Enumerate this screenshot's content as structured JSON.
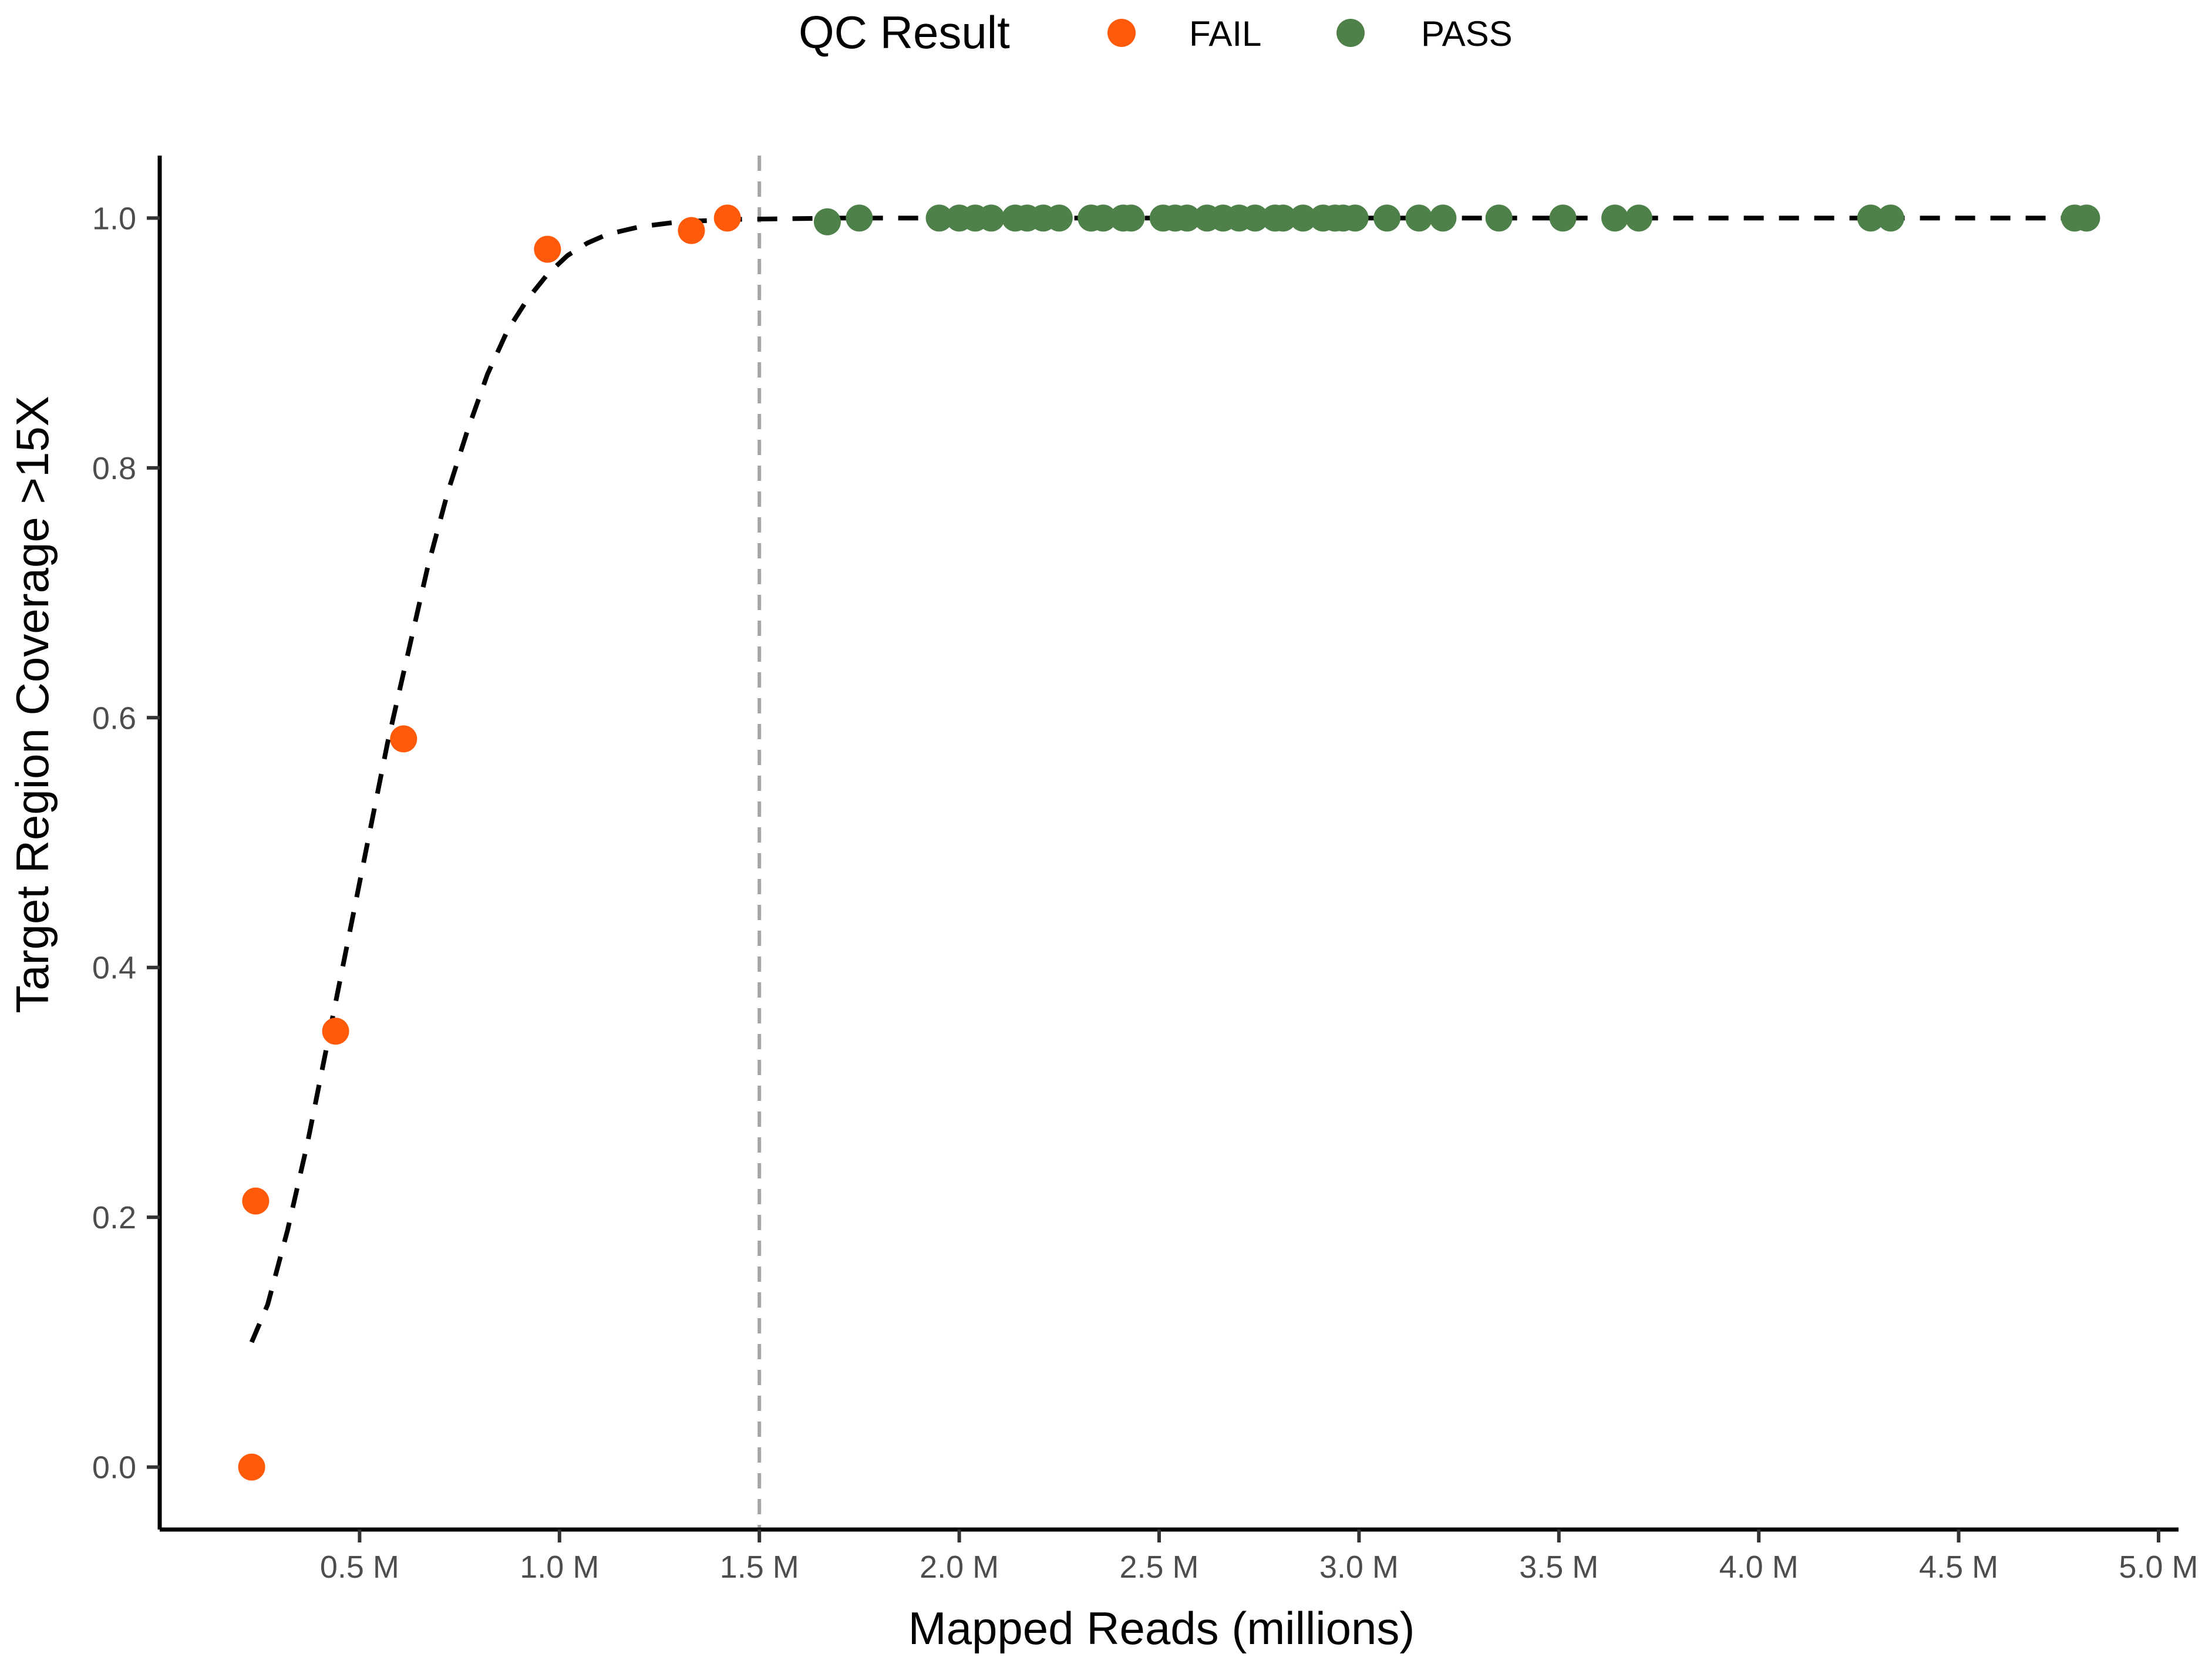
{
  "legend": {
    "title": "QC Result",
    "entries": [
      {
        "label": "FAIL",
        "color": "#FF5A0A"
      },
      {
        "label": "PASS",
        "color": "#4E8049"
      }
    ]
  },
  "chart_data": {
    "type": "scatter",
    "title": "",
    "xlabel": "Mapped Reads (millions)",
    "ylabel": "Target Region Coverage >15X",
    "xlim": [
      0.0,
      5.05
    ],
    "ylim": [
      -0.05,
      1.05
    ],
    "x_ticks": [
      {
        "value": 0.5,
        "label": "0.5 M"
      },
      {
        "value": 1.0,
        "label": "1.0 M"
      },
      {
        "value": 1.5,
        "label": "1.5 M"
      },
      {
        "value": 2.0,
        "label": "2.0 M"
      },
      {
        "value": 2.5,
        "label": "2.5 M"
      },
      {
        "value": 3.0,
        "label": "3.0 M"
      },
      {
        "value": 3.5,
        "label": "3.5 M"
      },
      {
        "value": 4.0,
        "label": "4.0 M"
      },
      {
        "value": 4.5,
        "label": "4.5 M"
      },
      {
        "value": 5.0,
        "label": "5.0 M"
      }
    ],
    "y_ticks": [
      {
        "value": 0.0,
        "label": "0.0"
      },
      {
        "value": 0.2,
        "label": "0.2"
      },
      {
        "value": 0.4,
        "label": "0.4"
      },
      {
        "value": 0.6,
        "label": "0.6"
      },
      {
        "value": 0.8,
        "label": "0.8"
      },
      {
        "value": 1.0,
        "label": "1.0"
      }
    ],
    "grid": false,
    "legend_position": "top",
    "threshold_line": {
      "x": 1.5,
      "color": "#A6A6A6",
      "style": "dashed"
    },
    "series": [
      {
        "name": "FAIL",
        "color": "#FF5A0A",
        "points": [
          [
            0.23,
            0.0
          ],
          [
            0.24,
            0.213
          ],
          [
            0.44,
            0.349
          ],
          [
            0.61,
            0.583
          ],
          [
            0.97,
            0.975
          ],
          [
            1.33,
            0.99
          ],
          [
            1.42,
            1.0
          ]
        ]
      },
      {
        "name": "PASS",
        "color": "#4E8049",
        "points": [
          [
            1.67,
            0.997
          ],
          [
            1.75,
            1.0
          ],
          [
            1.95,
            1.0
          ],
          [
            2.0,
            1.0
          ],
          [
            2.04,
            1.0
          ],
          [
            2.08,
            1.0
          ],
          [
            2.14,
            1.0
          ],
          [
            2.17,
            1.0
          ],
          [
            2.21,
            1.0
          ],
          [
            2.25,
            1.0
          ],
          [
            2.33,
            1.0
          ],
          [
            2.36,
            1.0
          ],
          [
            2.41,
            1.0
          ],
          [
            2.43,
            1.0
          ],
          [
            2.51,
            1.0
          ],
          [
            2.54,
            1.0
          ],
          [
            2.57,
            1.0
          ],
          [
            2.62,
            1.0
          ],
          [
            2.66,
            1.0
          ],
          [
            2.7,
            1.0
          ],
          [
            2.74,
            1.0
          ],
          [
            2.79,
            1.0
          ],
          [
            2.81,
            1.0
          ],
          [
            2.86,
            1.0
          ],
          [
            2.91,
            1.0
          ],
          [
            2.94,
            1.0
          ],
          [
            2.96,
            1.0
          ],
          [
            2.99,
            1.0
          ],
          [
            3.07,
            1.0
          ],
          [
            3.15,
            1.0
          ],
          [
            3.21,
            1.0
          ],
          [
            3.35,
            1.0
          ],
          [
            3.51,
            1.0
          ],
          [
            3.64,
            1.0
          ],
          [
            3.7,
            1.0
          ],
          [
            4.28,
            1.0
          ],
          [
            4.33,
            1.0
          ],
          [
            4.79,
            1.0
          ],
          [
            4.82,
            1.0
          ]
        ]
      }
    ],
    "fit_line": {
      "color": "#000000",
      "style": "dashed",
      "points": [
        [
          0.23,
          0.1
        ],
        [
          0.27,
          0.13
        ],
        [
          0.32,
          0.19
        ],
        [
          0.37,
          0.26
        ],
        [
          0.42,
          0.34
        ],
        [
          0.47,
          0.42
        ],
        [
          0.52,
          0.5
        ],
        [
          0.57,
          0.58
        ],
        [
          0.62,
          0.65
        ],
        [
          0.67,
          0.72
        ],
        [
          0.72,
          0.78
        ],
        [
          0.77,
          0.83
        ],
        [
          0.82,
          0.875
        ],
        [
          0.87,
          0.91
        ],
        [
          0.92,
          0.935
        ],
        [
          0.97,
          0.955
        ],
        [
          1.02,
          0.97
        ],
        [
          1.07,
          0.98
        ],
        [
          1.12,
          0.987
        ],
        [
          1.2,
          0.993
        ],
        [
          1.3,
          0.997
        ],
        [
          1.45,
          0.999
        ],
        [
          1.7,
          1.0
        ],
        [
          2.5,
          1.0
        ],
        [
          3.5,
          1.0
        ],
        [
          4.5,
          1.0
        ],
        [
          4.82,
          1.0
        ]
      ]
    }
  }
}
